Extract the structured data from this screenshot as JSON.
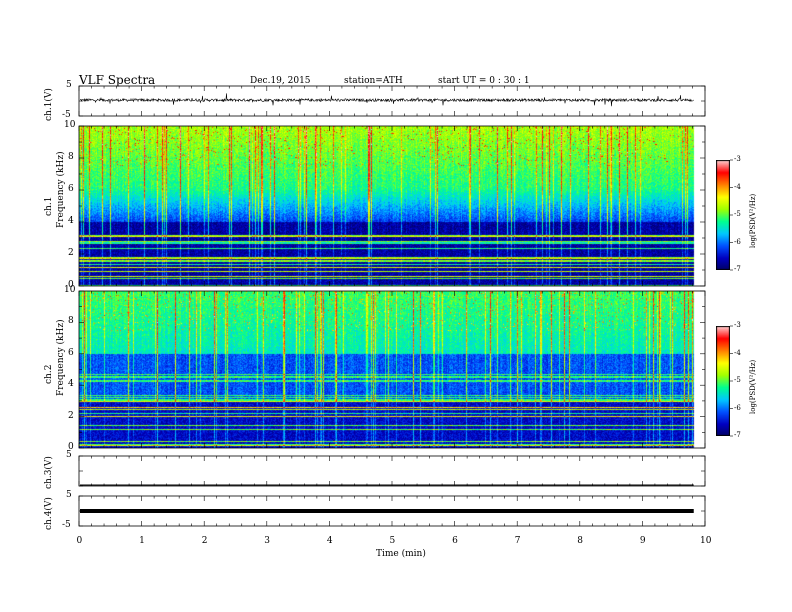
{
  "header": {
    "title": "VLF  Spectra",
    "date": "Dec.19, 2015",
    "station": "station=ATH",
    "start": "start  UT  =    0 : 30 : 1"
  },
  "chart_data": [
    {
      "type": "line",
      "name": "ch1-waveform",
      "ylabel": "ch.1(V)",
      "ylim": [
        -5,
        5
      ],
      "y_ticks": [
        "5",
        "-5"
      ],
      "xlim": [
        0,
        10
      ],
      "trace_level": 0.3,
      "trace_end": 9.82
    },
    {
      "type": "heatmap",
      "name": "ch1-spectrogram",
      "ylabel_top": "ch.1",
      "ylabel": "Frequency  (kHz)",
      "ylim": [
        0,
        10
      ],
      "y_ticks": [
        "0",
        "2",
        "4",
        "6",
        "8",
        "10"
      ],
      "xlim": [
        0,
        10
      ],
      "data_end": 9.82,
      "colorbar": {
        "label": "log(PSD(V²/Hz)",
        "range": [
          -7,
          -3
        ],
        "ticks": [
          "-3",
          "-4",
          "-5",
          "-6",
          "-7"
        ]
      }
    },
    {
      "type": "heatmap",
      "name": "ch2-spectrogram",
      "ylabel_top": "ch.2",
      "ylabel": "Frequency  (kHz)",
      "ylim": [
        0,
        10
      ],
      "y_ticks": [
        "0",
        "2",
        "4",
        "6",
        "8",
        "10"
      ],
      "xlim": [
        0,
        10
      ],
      "data_end": 9.82,
      "colorbar": {
        "label": "log(PSD(V²/Hz)",
        "range": [
          -7,
          -3
        ],
        "ticks": [
          "-3",
          "-4",
          "-5",
          "-6",
          "-7"
        ]
      }
    },
    {
      "type": "line",
      "name": "ch3-waveform",
      "ylabel": "ch.3(V)",
      "ylim": [
        -5,
        5
      ],
      "y_ticks": [
        "5"
      ],
      "xlim": [
        0,
        10
      ],
      "trace_level": -5,
      "trace_end": 9.82
    },
    {
      "type": "line",
      "name": "ch4-waveform",
      "ylabel": "ch.4(V)",
      "ylim": [
        -5,
        5
      ],
      "y_ticks": [
        "5",
        "-5"
      ],
      "xlim": [
        0,
        10
      ],
      "trace_level": 0,
      "trace_end": 9.82
    }
  ],
  "xaxis": {
    "label": "Time  (min)",
    "ticks": [
      "0",
      "1",
      "2",
      "3",
      "4",
      "5",
      "6",
      "7",
      "8",
      "9",
      "10"
    ]
  },
  "colors": {
    "colormap": [
      "#000060",
      "#0000c0",
      "#0050ff",
      "#00c8ff",
      "#00ff90",
      "#a0ff00",
      "#ffff00",
      "#ff8000",
      "#ff0000",
      "#ffd0d0"
    ]
  }
}
